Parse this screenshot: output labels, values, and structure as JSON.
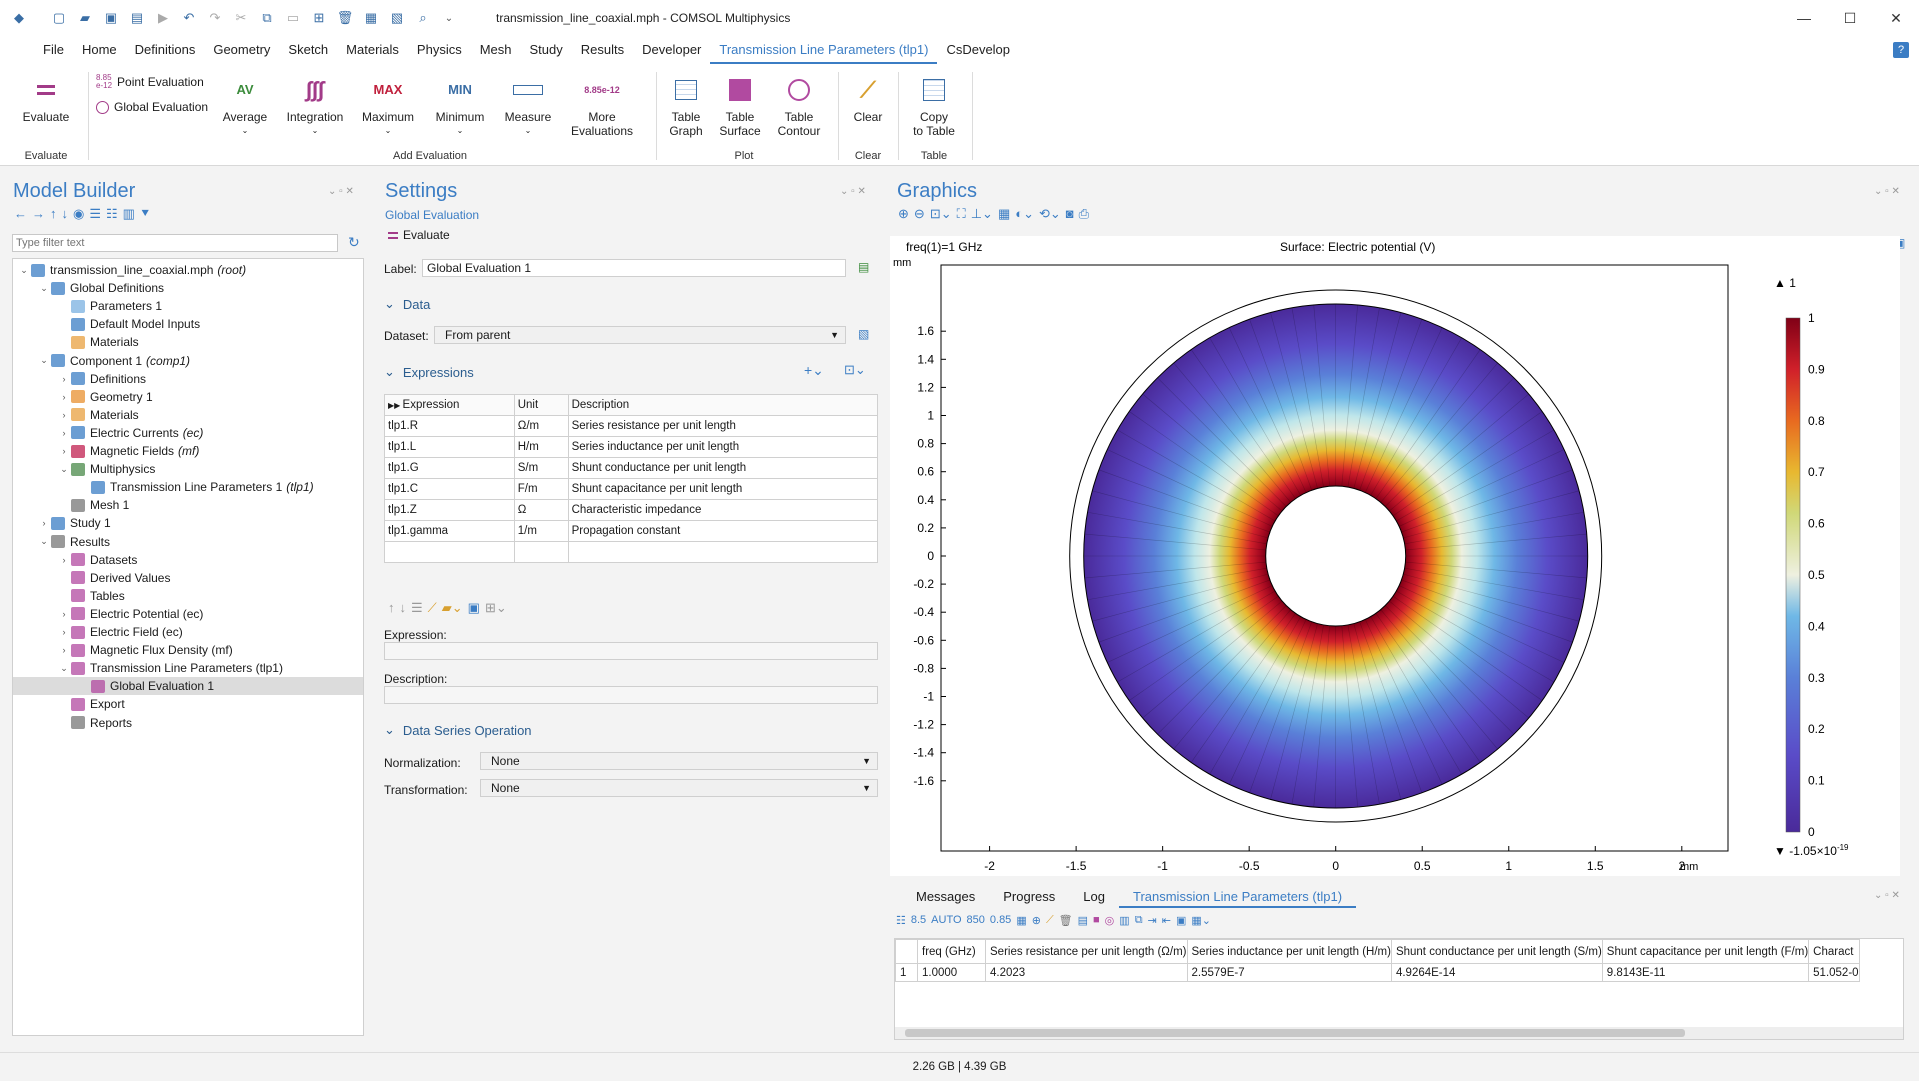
{
  "window": {
    "title": "transmission_line_coaxial.mph - COMSOL Multiphysics"
  },
  "menu": [
    "File",
    "Home",
    "Definitions",
    "Geometry",
    "Sketch",
    "Materials",
    "Physics",
    "Mesh",
    "Study",
    "Results",
    "Developer",
    "Transmission Line Parameters (tlp1)",
    "CsDevelop"
  ],
  "ribbon": {
    "evaluate": "Evaluate",
    "group_evaluate": "Evaluate",
    "point_eval": "Point Evaluation",
    "global_eval": "Global Evaluation",
    "average": "Average",
    "integration": "Integration",
    "maximum": "Maximum",
    "minimum": "Minimum",
    "measure": "Measure",
    "more1": "More",
    "more2": "Evaluations",
    "group_add": "Add Evaluation",
    "table_graph1": "Table",
    "table_graph2": "Graph",
    "table_surface1": "Table",
    "table_surface2": "Surface",
    "table_contour1": "Table",
    "table_contour2": "Contour",
    "group_plot": "Plot",
    "clear": "Clear",
    "group_clear": "Clear",
    "copy1": "Copy",
    "copy2": "to Table",
    "group_table": "Table",
    "av": "AV",
    "max": "MAX",
    "min": "MIN",
    "e885": "8.85",
    "e12": "e-12"
  },
  "model_builder": {
    "title": "Model Builder",
    "filter_placeholder": "Type filter text",
    "tree": [
      {
        "label": "transmission_line_coaxial.mph",
        "tag": "(root)"
      },
      {
        "label": "Global Definitions",
        "tag": ""
      },
      {
        "label": "Parameters 1",
        "tag": ""
      },
      {
        "label": "Default Model Inputs",
        "tag": ""
      },
      {
        "label": "Materials",
        "tag": ""
      },
      {
        "label": "Component 1",
        "tag": "(comp1)"
      },
      {
        "label": "Definitions",
        "tag": ""
      },
      {
        "label": "Geometry 1",
        "tag": ""
      },
      {
        "label": "Materials",
        "tag": ""
      },
      {
        "label": "Electric Currents",
        "tag": "(ec)"
      },
      {
        "label": "Magnetic Fields",
        "tag": "(mf)"
      },
      {
        "label": "Multiphysics",
        "tag": ""
      },
      {
        "label": "Transmission Line Parameters 1",
        "tag": "(tlp1)"
      },
      {
        "label": "Mesh 1",
        "tag": ""
      },
      {
        "label": "Study 1",
        "tag": ""
      },
      {
        "label": "Results",
        "tag": ""
      },
      {
        "label": "Datasets",
        "tag": ""
      },
      {
        "label": "Derived Values",
        "tag": ""
      },
      {
        "label": "Tables",
        "tag": ""
      },
      {
        "label": "Electric Potential (ec)",
        "tag": ""
      },
      {
        "label": "Electric Field (ec)",
        "tag": ""
      },
      {
        "label": "Magnetic Flux Density (mf)",
        "tag": ""
      },
      {
        "label": "Transmission Line Parameters (tlp1)",
        "tag": ""
      },
      {
        "label": "Global Evaluation 1",
        "tag": ""
      },
      {
        "label": "Export",
        "tag": ""
      },
      {
        "label": "Reports",
        "tag": ""
      }
    ]
  },
  "settings": {
    "title": "Settings",
    "subtitle": "Global Evaluation",
    "evaluate": "Evaluate",
    "label_label": "Label:",
    "label_value": "Global Evaluation 1",
    "data_section": "Data",
    "dataset_label": "Dataset:",
    "dataset_value": "From parent",
    "expr_section": "Expressions",
    "headers": [
      "Expression",
      "Unit",
      "Description"
    ],
    "rows": [
      [
        "tlp1.R",
        "Ω/m",
        "Series resistance per unit length"
      ],
      [
        "tlp1.L",
        "H/m",
        "Series inductance per unit length"
      ],
      [
        "tlp1.G",
        "S/m",
        "Shunt conductance per unit length"
      ],
      [
        "tlp1.C",
        "F/m",
        "Shunt capacitance per unit length"
      ],
      [
        "tlp1.Z",
        "Ω",
        "Characteristic impedance"
      ],
      [
        "tlp1.gamma",
        "1/m",
        "Propagation constant"
      ]
    ],
    "expression_label": "Expression:",
    "description_label": "Description:",
    "dso_section": "Data Series Operation",
    "normalization_label": "Normalization:",
    "normalization_value": "None",
    "transformation_label": "Transformation:",
    "transformation_value": "None"
  },
  "graphics": {
    "title": "Graphics",
    "freq": "freq(1)=1 GHz",
    "plot_title": "Surface: Electric potential (V)",
    "unit": "mm",
    "y_ticks": [
      "1.6",
      "1.4",
      "1.2",
      "1",
      "0.8",
      "0.6",
      "0.4",
      "0.2",
      "0",
      "-0.2",
      "-0.4",
      "-0.6",
      "-0.8",
      "-1",
      "-1.2",
      "-1.4",
      "-1.6"
    ],
    "x_ticks": [
      "-2",
      "-1.5",
      "-1",
      "-0.5",
      "0",
      "0.5",
      "1",
      "1.5",
      "2"
    ],
    "colorbar": [
      "1",
      "0.9",
      "0.8",
      "0.7",
      "0.6",
      "0.5",
      "0.4",
      "0.3",
      "0.2",
      "0.1",
      "0"
    ],
    "max_label": "1",
    "min_label": "-1.05×10",
    "min_exp": "-19"
  },
  "bottom": {
    "tabs": [
      "Messages",
      "Progress",
      "Log",
      "Transmission Line Parameters (tlp1)"
    ],
    "headers": [
      "",
      "freq (GHz)",
      "Series resistance per unit length (Ω/m)",
      "Series inductance per unit length (H/m)",
      "Shunt conductance per unit length (S/m)",
      "Shunt capacitance per unit length (F/m)",
      "Charact"
    ],
    "row": [
      "1",
      "1.0000",
      "4.2023",
      "2.5579E-7",
      "4.9264E-14",
      "9.8143E-11",
      "51.052-0"
    ]
  },
  "status": "2.26 GB | 4.39 GB"
}
